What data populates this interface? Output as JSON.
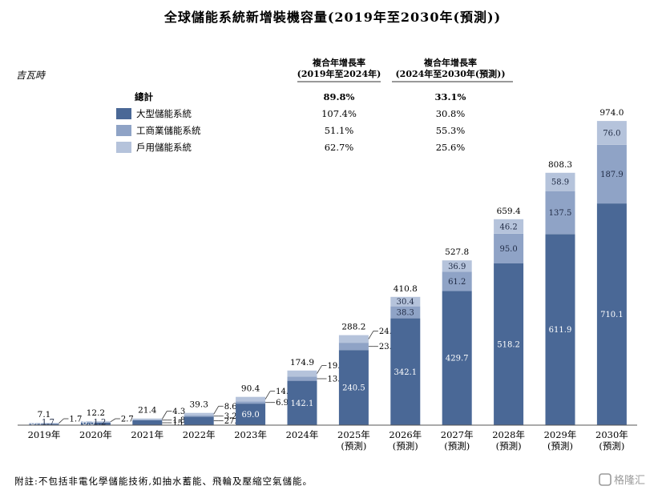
{
  "title": "全球儲能系統新增裝機容量(2019年至2030年(預測))",
  "unit": "吉瓦時",
  "cagr_header_1": [
    "複合年增長率",
    "(2019年至2024年)"
  ],
  "cagr_header_2": [
    "複合年增長率",
    "(2024年至2030年(預測))"
  ],
  "legend": [
    {
      "label": "總計",
      "cagr1": "89.8%",
      "cagr2": "33.1%",
      "color": null,
      "bold": true
    },
    {
      "label": "大型儲能系統",
      "cagr1": "107.4%",
      "cagr2": "30.8%",
      "color": "#4a6896"
    },
    {
      "label": "工商業儲能系統",
      "cagr1": "51.1%",
      "cagr2": "55.3%",
      "color": "#8fa3c6"
    },
    {
      "label": "戶用儲能系統",
      "cagr1": "62.7%",
      "cagr2": "25.6%",
      "color": "#b5c3db"
    }
  ],
  "footnote": "附註:不包括非電化學儲能技術,如抽水蓄能、飛輪及壓縮空氣儲能。",
  "watermark": "格隆汇",
  "chart_data": {
    "type": "bar",
    "stacked": true,
    "categories": [
      [
        "2019年"
      ],
      [
        "2020年"
      ],
      [
        "2021年"
      ],
      [
        "2022年"
      ],
      [
        "2023年"
      ],
      [
        "2024年"
      ],
      [
        "2025年",
        "(預測)"
      ],
      [
        "2026年",
        "(預測)"
      ],
      [
        "2027年",
        "(預測)"
      ],
      [
        "2028年",
        "(預測)"
      ],
      [
        "2029年",
        "(預測)"
      ],
      [
        "2030年",
        "(預測)"
      ]
    ],
    "series": [
      {
        "name": "大型儲能系統",
        "color": "#4a6896",
        "values": [
          3.7,
          8.3,
          15.3,
          27.5,
          69.0,
          142.1,
          240.5,
          342.1,
          429.7,
          518.2,
          611.9,
          710.1
        ],
        "labels": [
          "3.7",
          "8.3",
          "15.3",
          "27.5",
          "69.0",
          "142.1",
          "240.5",
          "342.1",
          "429.7",
          "518.2",
          "611.9",
          "710.1"
        ]
      },
      {
        "name": "工商業儲能系統",
        "color": "#8fa3c6",
        "values": [
          1.7,
          1.2,
          1.8,
          3.2,
          6.9,
          13.4,
          23.3,
          38.3,
          61.2,
          95.0,
          137.5,
          187.9
        ],
        "labels": [
          "1.7",
          "1.2",
          "1.8",
          "3.2",
          "6.9",
          "13.4",
          "23.3",
          "38.3",
          "61.2",
          "95.0",
          "137.5",
          "187.9"
        ]
      },
      {
        "name": "戶用儲能系統",
        "color": "#b5c3db",
        "values": [
          1.7,
          2.7,
          4.3,
          8.6,
          14.5,
          19.4,
          24.4,
          30.4,
          36.9,
          46.2,
          58.9,
          76.0
        ],
        "labels": [
          "1.7",
          "2.7",
          "4.3",
          "8.6",
          "14.5",
          "19.4",
          "24.4",
          "30.4",
          "36.9",
          "46.2",
          "58.9",
          "76.0"
        ]
      }
    ],
    "totals": [
      "7.1",
      "12.2",
      "21.4",
      "39.3",
      "90.4",
      "174.9",
      "288.2",
      "410.8",
      "527.8",
      "659.4",
      "808.3",
      "974.0"
    ],
    "ylim": [
      0,
      1000
    ],
    "grid": false
  }
}
